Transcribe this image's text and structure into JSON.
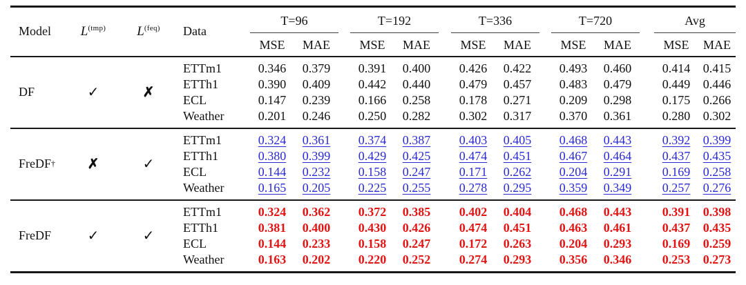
{
  "table": {
    "header": {
      "model_label": "Model",
      "loss_tmp": {
        "base": "L",
        "sup": "(tmp)"
      },
      "loss_feq": {
        "base": "L",
        "sup": "(feq)"
      },
      "data_label": "Data",
      "groups": [
        "T=96",
        "T=192",
        "T=336",
        "T=720",
        "Avg"
      ],
      "metrics": [
        "MSE",
        "MAE"
      ]
    },
    "colors": {
      "blue": "#2a2ad4",
      "red": "#e21414",
      "rule": "#161616"
    },
    "marks": {
      "check": "✓",
      "cross": "✗"
    },
    "blocks": [
      {
        "model": "DF",
        "model_sup": "",
        "tmp_mark": "✓",
        "feq_mark": "✗",
        "style": "plain",
        "rows": [
          {
            "dataset": "ETTm1",
            "values": [
              "0.346",
              "0.379",
              "0.391",
              "0.400",
              "0.426",
              "0.422",
              "0.493",
              "0.460",
              "0.414",
              "0.415"
            ]
          },
          {
            "dataset": "ETTh1",
            "values": [
              "0.390",
              "0.409",
              "0.442",
              "0.440",
              "0.479",
              "0.457",
              "0.483",
              "0.479",
              "0.449",
              "0.446"
            ]
          },
          {
            "dataset": "ECL",
            "values": [
              "0.147",
              "0.239",
              "0.166",
              "0.258",
              "0.178",
              "0.271",
              "0.209",
              "0.298",
              "0.175",
              "0.266"
            ]
          },
          {
            "dataset": "Weather",
            "values": [
              "0.201",
              "0.246",
              "0.250",
              "0.282",
              "0.302",
              "0.317",
              "0.370",
              "0.361",
              "0.280",
              "0.302"
            ]
          }
        ]
      },
      {
        "model": "FreDF",
        "model_sup": "†",
        "tmp_mark": "✗",
        "feq_mark": "✓",
        "style": "blue",
        "rows": [
          {
            "dataset": "ETTm1",
            "values": [
              "0.324",
              "0.361",
              "0.374",
              "0.387",
              "0.403",
              "0.405",
              "0.468",
              "0.443",
              "0.392",
              "0.399"
            ]
          },
          {
            "dataset": "ETTh1",
            "values": [
              "0.380",
              "0.399",
              "0.429",
              "0.425",
              "0.474",
              "0.451",
              "0.467",
              "0.464",
              "0.437",
              "0.435"
            ]
          },
          {
            "dataset": "ECL",
            "values": [
              "0.144",
              "0.232",
              "0.158",
              "0.247",
              "0.171",
              "0.262",
              "0.204",
              "0.291",
              "0.169",
              "0.258"
            ]
          },
          {
            "dataset": "Weather",
            "values": [
              "0.165",
              "0.205",
              "0.225",
              "0.255",
              "0.278",
              "0.295",
              "0.359",
              "0.349",
              "0.257",
              "0.276"
            ]
          }
        ]
      },
      {
        "model": "FreDF",
        "model_sup": "",
        "tmp_mark": "✓",
        "feq_mark": "✓",
        "style": "red",
        "rows": [
          {
            "dataset": "ETTm1",
            "values": [
              "0.324",
              "0.362",
              "0.372",
              "0.385",
              "0.402",
              "0.404",
              "0.468",
              "0.443",
              "0.391",
              "0.398"
            ]
          },
          {
            "dataset": "ETTh1",
            "values": [
              "0.381",
              "0.400",
              "0.430",
              "0.426",
              "0.474",
              "0.451",
              "0.463",
              "0.461",
              "0.437",
              "0.435"
            ]
          },
          {
            "dataset": "ECL",
            "values": [
              "0.144",
              "0.233",
              "0.158",
              "0.247",
              "0.172",
              "0.263",
              "0.204",
              "0.293",
              "0.169",
              "0.259"
            ]
          },
          {
            "dataset": "Weather",
            "values": [
              "0.163",
              "0.202",
              "0.220",
              "0.252",
              "0.274",
              "0.293",
              "0.356",
              "0.346",
              "0.253",
              "0.273"
            ]
          }
        ]
      }
    ]
  }
}
